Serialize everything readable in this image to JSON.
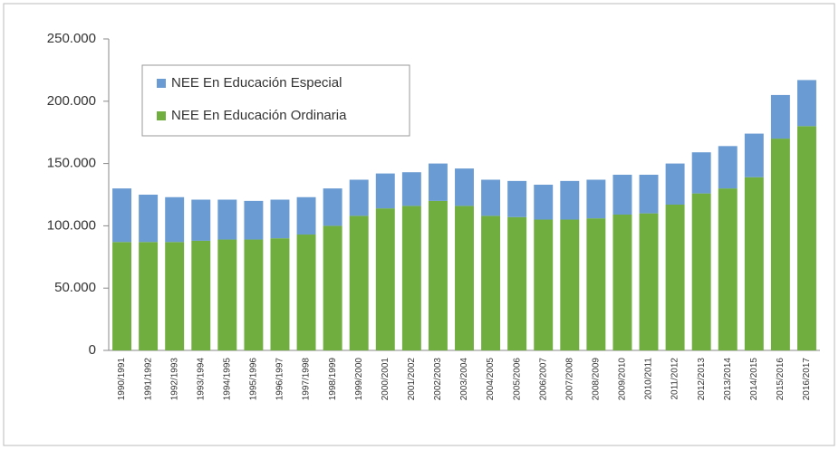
{
  "chart_data": {
    "type": "stacked_bar",
    "categories": [
      "1990/1991",
      "1991/1992",
      "1992/1993",
      "1993/1994",
      "1994/1995",
      "1995/1996",
      "1996/1997",
      "1997/1998",
      "1998/1999",
      "1999/2000",
      "2000/2001",
      "2001/2002",
      "2002/2003",
      "2003/2004",
      "2004/2005",
      "2005/2006",
      "2006/2007",
      "2007/2008",
      "2008/2009",
      "2009/2010",
      "2010/2011",
      "2011/2012",
      "2012/2013",
      "2013/2014",
      "2014/2015",
      "2015/2016",
      "2016/2017"
    ],
    "series": [
      {
        "name": "NEE En Educación Especial",
        "color": "#6a9bd2",
        "values": [
          43000,
          38000,
          36000,
          33000,
          32000,
          31000,
          31000,
          30000,
          30000,
          29000,
          28000,
          27000,
          30000,
          30000,
          29000,
          29000,
          28000,
          31000,
          31000,
          32000,
          31000,
          33000,
          33000,
          34000,
          35000,
          35000,
          37000
        ]
      },
      {
        "name": "NEE En Educación Ordinaria",
        "color": "#6fae3f",
        "values": [
          87000,
          87000,
          87000,
          88000,
          89000,
          89000,
          90000,
          93000,
          100000,
          108000,
          114000,
          116000,
          120000,
          116000,
          108000,
          107000,
          105000,
          105000,
          106000,
          109000,
          110000,
          117000,
          126000,
          130000,
          139000,
          170000,
          180000
        ]
      }
    ],
    "ylim": [
      0,
      250000
    ],
    "yticks": [
      0,
      {
        "value": 50000,
        "label": "50.000"
      },
      {
        "value": 100000,
        "label": "100.000"
      },
      {
        "value": 150000,
        "label": "150.000"
      },
      {
        "value": 200000,
        "label": "200.000"
      },
      {
        "value": 250000,
        "label": "250.000"
      }
    ],
    "legend": "upper-left"
  }
}
